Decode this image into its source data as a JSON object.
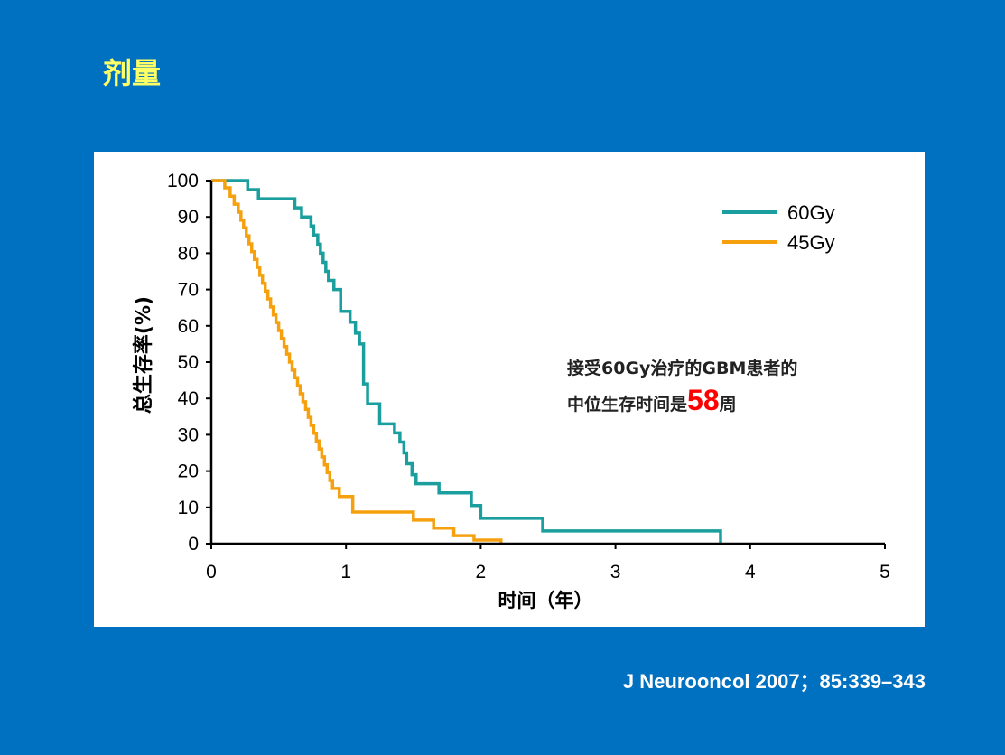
{
  "slide": {
    "title": "剂量",
    "citation": "J Neurooncol  2007；85:339–343"
  },
  "annotation": {
    "line1": "接受60Gy治疗的GBM患者的",
    "line2_prefix": "中位生存时间是",
    "line2_value": "58",
    "line2_suffix": "周",
    "value_color": "#FF0000"
  },
  "chart_data": {
    "type": "line",
    "xlabel": "时间（年）",
    "ylabel": "总生存率(%)",
    "xlim": [
      0,
      5
    ],
    "ylim": [
      0,
      100
    ],
    "xticks": [
      "0",
      "1",
      "2",
      "3",
      "4",
      "5"
    ],
    "yticks": [
      "0",
      "10",
      "20",
      "30",
      "40",
      "50",
      "60",
      "70",
      "80",
      "90",
      "100"
    ],
    "grid": false,
    "legend_position": "top-right",
    "series": [
      {
        "name": "60Gy",
        "color": "#1B9E9E",
        "step": true,
        "x": [
          0,
          0.27,
          0.35,
          0.62,
          0.67,
          0.74,
          0.76,
          0.79,
          0.81,
          0.83,
          0.85,
          0.87,
          0.91,
          0.96,
          1.03,
          1.07,
          1.1,
          1.13,
          1.16,
          1.25,
          1.36,
          1.4,
          1.43,
          1.45,
          1.49,
          1.52,
          1.69,
          1.93,
          2.0,
          2.46,
          3.78
        ],
        "y": [
          100,
          97.5,
          95,
          92.5,
          90,
          87.5,
          85,
          82.5,
          80,
          77.5,
          75,
          72.5,
          70,
          64,
          61,
          58,
          55,
          44,
          38.5,
          33,
          30.5,
          28,
          25,
          22,
          19,
          16.5,
          14,
          10.5,
          7,
          3.5,
          0
        ]
      },
      {
        "name": "45Gy",
        "color": "#F5A10F",
        "step": true,
        "x": [
          0,
          0.1,
          0.14,
          0.17,
          0.2,
          0.22,
          0.24,
          0.26,
          0.28,
          0.3,
          0.32,
          0.34,
          0.36,
          0.38,
          0.4,
          0.42,
          0.44,
          0.46,
          0.48,
          0.5,
          0.52,
          0.54,
          0.56,
          0.58,
          0.6,
          0.62,
          0.64,
          0.66,
          0.68,
          0.7,
          0.72,
          0.74,
          0.76,
          0.78,
          0.8,
          0.82,
          0.84,
          0.86,
          0.88,
          0.9,
          0.95,
          1.05,
          1.5,
          1.65,
          1.8,
          1.95,
          2.15
        ],
        "y": [
          100,
          98,
          95.7,
          93.5,
          91.3,
          89.1,
          87,
          84.8,
          82.6,
          80.4,
          78.3,
          76.1,
          73.9,
          71.7,
          69.6,
          67.4,
          65.2,
          63,
          60.9,
          58.7,
          56.5,
          54.3,
          52.2,
          50,
          47.8,
          45.7,
          43.5,
          41.3,
          39.1,
          37,
          34.8,
          32.6,
          30.4,
          28.3,
          26.1,
          23.9,
          21.7,
          19.6,
          17.4,
          15.2,
          13,
          8.7,
          6.5,
          4.3,
          2.2,
          1,
          0
        ]
      }
    ]
  }
}
